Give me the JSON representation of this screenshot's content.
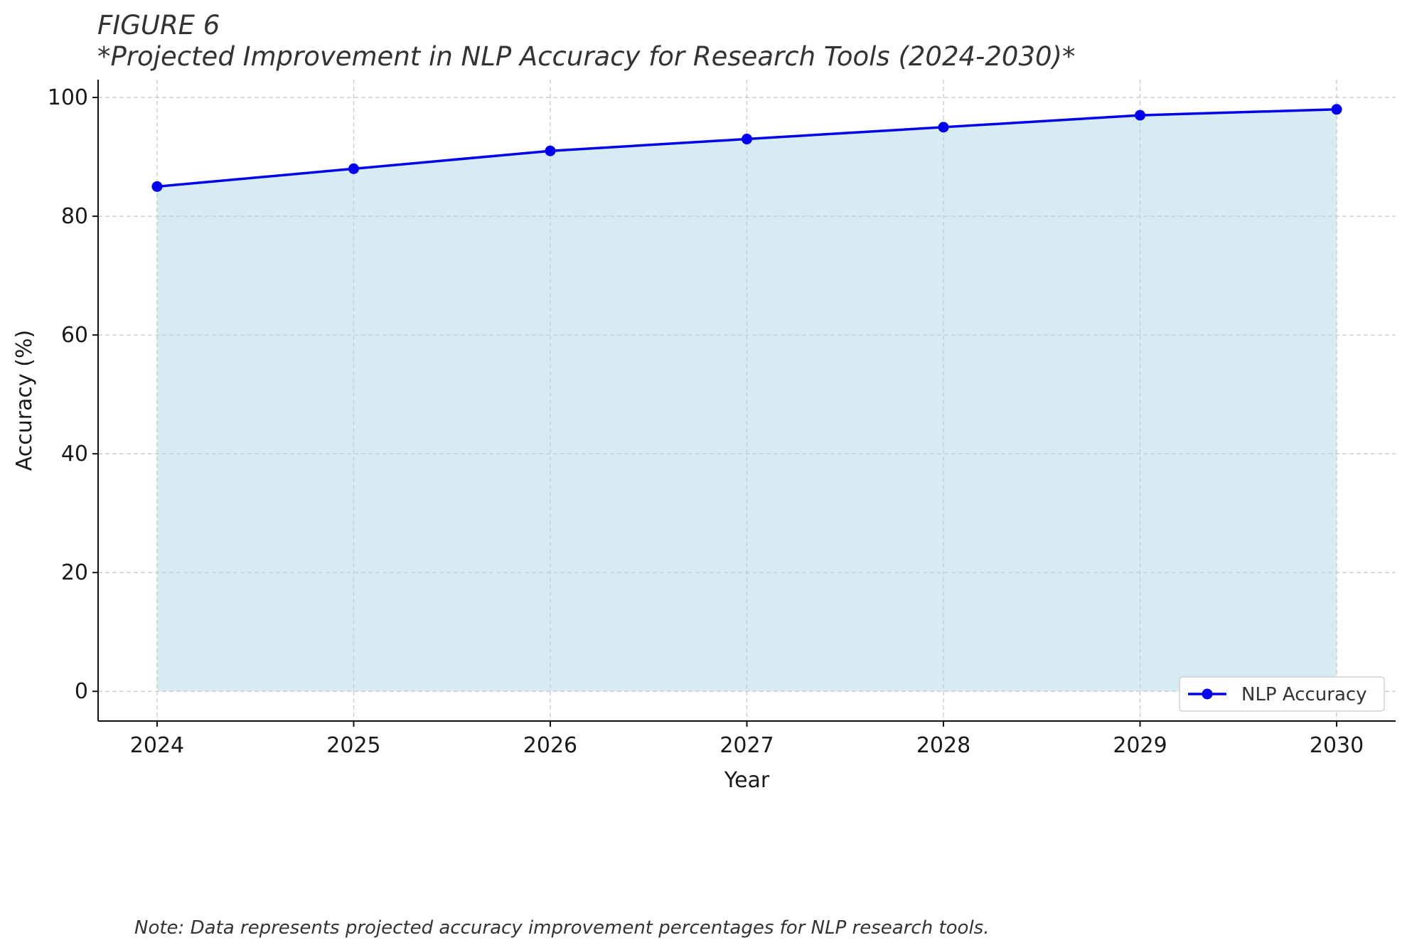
{
  "figure_label": "FIGURE 6",
  "note": "Note: Data represents projected accuracy improvement percentages for NLP research tools.",
  "chart_data": {
    "type": "area",
    "title": "*Projected Improvement in NLP Accuracy for Research Tools (2024-2030)*",
    "xlabel": "Year",
    "ylabel": "Accuracy (%)",
    "x": [
      2024,
      2025,
      2026,
      2027,
      2028,
      2029,
      2030
    ],
    "x_tick_labels": [
      "2024",
      "2025",
      "2026",
      "2027",
      "2028",
      "2029",
      "2030"
    ],
    "y_ticks": [
      0,
      20,
      40,
      60,
      80,
      100
    ],
    "y_tick_labels": [
      "0",
      "20",
      "40",
      "60",
      "80",
      "100"
    ],
    "xlim": [
      2023.7,
      2030.3
    ],
    "ylim": [
      -5,
      103
    ],
    "series": [
      {
        "name": "NLP Accuracy",
        "values": [
          85,
          88,
          91,
          93,
          95,
          97,
          98
        ],
        "line_color": "#0000ee",
        "fill_color": "#add8e6"
      }
    ],
    "grid": true,
    "legend_position": "lower-right"
  }
}
